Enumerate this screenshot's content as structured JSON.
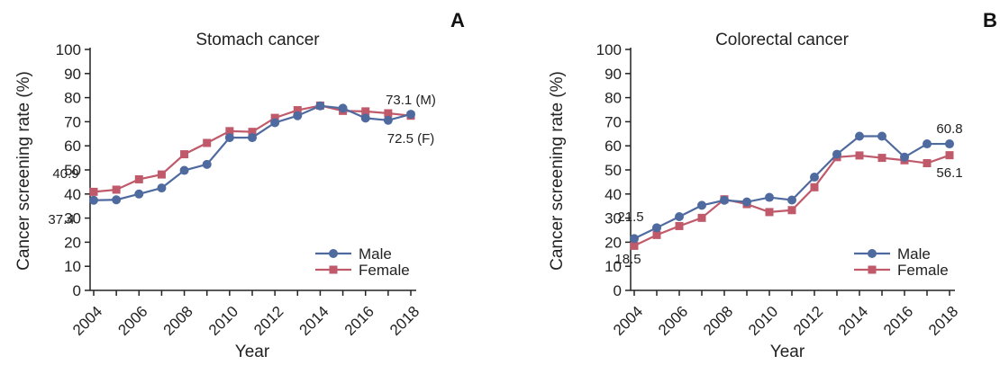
{
  "chart_data": [
    {
      "panel_letter": "A",
      "type": "line",
      "title": "Stomach cancer",
      "xlabel": "Year",
      "ylabel": "Cancer screening rate (%)",
      "ylim": [
        0,
        100
      ],
      "yticks": [
        "0",
        "10",
        "20",
        "30",
        "40",
        "50",
        "60",
        "70",
        "80",
        "90",
        "100"
      ],
      "xtick_labels": [
        "2004",
        "2006",
        "2008",
        "2010",
        "2012",
        "2014",
        "2016",
        "2018"
      ],
      "x": [
        2004,
        2005,
        2006,
        2007,
        2008,
        2009,
        2010,
        2011,
        2012,
        2013,
        2014,
        2015,
        2016,
        2017,
        2018
      ],
      "series": [
        {
          "name": "Male",
          "color": "#4f6a9f",
          "marker": "circle",
          "values": [
            37.4,
            37.6,
            40.0,
            42.5,
            49.8,
            52.3,
            63.4,
            63.4,
            69.6,
            72.5,
            76.6,
            75.6,
            71.5,
            70.6,
            73.1
          ]
        },
        {
          "name": "Female",
          "color": "#c05a6b",
          "marker": "square",
          "values": [
            40.9,
            41.8,
            46.1,
            48.1,
            56.5,
            61.2,
            66.1,
            65.8,
            71.6,
            74.8,
            76.7,
            74.5,
            74.3,
            73.5,
            72.5
          ]
        }
      ],
      "annotations": [
        "40.9",
        "37.4",
        "73.1 (M)",
        "72.5 (F)"
      ],
      "legend": [
        "Male",
        "Female"
      ],
      "legend_position": "bottom-right"
    },
    {
      "panel_letter": "B",
      "type": "line",
      "title": "Colorectal cancer",
      "xlabel": "Year",
      "ylabel": "Cancer screening rate (%)",
      "ylim": [
        0,
        100
      ],
      "yticks": [
        "0",
        "10",
        "20",
        "30",
        "40",
        "50",
        "60",
        "70",
        "80",
        "90",
        "100"
      ],
      "xtick_labels": [
        "2004",
        "2006",
        "2008",
        "2010",
        "2012",
        "2014",
        "2016",
        "2018"
      ],
      "x": [
        2004,
        2005,
        2006,
        2007,
        2008,
        2009,
        2010,
        2011,
        2012,
        2013,
        2014,
        2015,
        2016,
        2017,
        2018
      ],
      "series": [
        {
          "name": "Male",
          "color": "#4f6a9f",
          "marker": "circle",
          "values": [
            21.5,
            26.0,
            30.6,
            35.3,
            37.4,
            36.7,
            38.6,
            37.5,
            47.0,
            56.5,
            64.0,
            64.0,
            55.3,
            60.8,
            60.8
          ]
        },
        {
          "name": "Female",
          "color": "#c05a6b",
          "marker": "square",
          "values": [
            18.5,
            23.0,
            26.7,
            30.1,
            37.8,
            35.8,
            32.5,
            33.3,
            42.8,
            55.3,
            56.0,
            55.0,
            54.0,
            52.8,
            56.1
          ]
        }
      ],
      "annotations": [
        "21.5",
        "18.5",
        "60.8",
        "56.1"
      ],
      "legend": [
        "Male",
        "Female"
      ],
      "legend_position": "bottom-right"
    }
  ]
}
